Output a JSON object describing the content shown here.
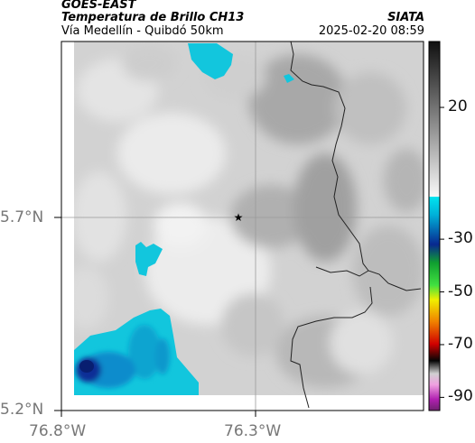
{
  "header": {
    "satellite": "GOES-EAST",
    "product": "Temperatura de Brillo CH13",
    "subtitle": "Vía Medellín - Quibdó 50km",
    "organization": "SIATA",
    "timestamp": "2025-02-20 08:59"
  },
  "map": {
    "lat_labels": [
      "5.7°N",
      "5.2°N"
    ],
    "lon_labels": [
      "76.8°W",
      "76.3°W"
    ],
    "marker": "star-icon"
  },
  "colorbar": {
    "tick_labels": [
      "20",
      "-30",
      "-50",
      "-70",
      "-90"
    ],
    "tick_values": [
      20,
      -30,
      -50,
      -70,
      -90
    ],
    "range": [
      -95,
      45
    ],
    "colors": {
      "warm_top": "#101010",
      "warm_bottom": "#fafafa",
      "cyan": "#00d0e0",
      "blue": "#0a2a90",
      "green": "#20c020",
      "yellow": "#f0e000",
      "red": "#e02000",
      "black": "#000000",
      "magenta": "#c020c0"
    }
  },
  "colors": {
    "cloud_cold_cyan": "#12c6dd",
    "cloud_very_cold": "#0a2f96",
    "coastline": "#222222",
    "gridline": "#9a9a9a"
  }
}
